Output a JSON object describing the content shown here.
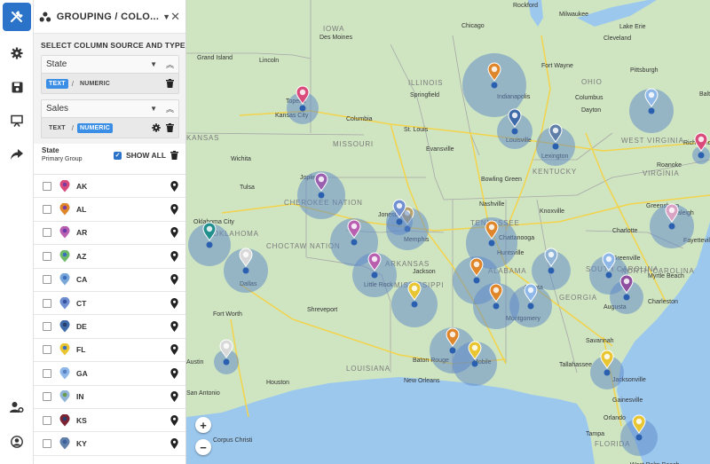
{
  "panel": {
    "title": "GROUPING / COLO...",
    "config_label": "SELECT COLUMN SOURCE AND TYPE:",
    "columns": [
      {
        "name": "State",
        "text_label": "TEXT",
        "numeric_label": "NUMERIC",
        "selected": "TEXT"
      },
      {
        "name": "Sales",
        "text_label": "TEXT",
        "numeric_label": "NUMERIC",
        "selected": "NUMERIC"
      }
    ],
    "group_title": "State",
    "group_subtitle": "Primary Group",
    "show_all_label": "SHOW ALL",
    "items": [
      {
        "label": "AK",
        "color": "#d94b7a",
        "inner": "#7d3ba0"
      },
      {
        "label": "AL",
        "color": "#e0862a",
        "inner": "#7d3ba0"
      },
      {
        "label": "AR",
        "color": "#b85fb0",
        "inner": "#6a3ba8"
      },
      {
        "label": "AZ",
        "color": "#6fb96a",
        "inner": "#3a6fbf"
      },
      {
        "label": "CA",
        "color": "#7aa7d8",
        "inner": "#3a6fbf"
      },
      {
        "label": "CT",
        "color": "#6f8fd0",
        "inner": "#33539e"
      },
      {
        "label": "DE",
        "color": "#3f6aa8",
        "inner": "#253f6e"
      },
      {
        "label": "FL",
        "color": "#e8c531",
        "inner": "#3a6fbf"
      },
      {
        "label": "GA",
        "color": "#8fb8e8",
        "inner": "#5581c2"
      },
      {
        "label": "IN",
        "color": "#8fb4d6",
        "inner": "#6a9a4c"
      },
      {
        "label": "KS",
        "color": "#7d2433",
        "inner": "#253f6e"
      },
      {
        "label": "KY",
        "color": "#5f7fa8",
        "inner": "#3a5f9e"
      }
    ]
  },
  "map": {
    "labels": [
      {
        "text": "IOWA"
      },
      {
        "text": "Des Moines"
      },
      {
        "text": "Chicago"
      },
      {
        "text": "Cleveland"
      },
      {
        "text": "Pittsburgh"
      },
      {
        "text": "OHIO"
      },
      {
        "text": "ILLINOIS"
      },
      {
        "text": "Springfield"
      },
      {
        "text": "Columbus"
      },
      {
        "text": "Indianapolis"
      },
      {
        "text": "Kansas City"
      },
      {
        "text": "Columbia"
      },
      {
        "text": "St. Louis"
      },
      {
        "text": "MISSOURI"
      },
      {
        "text": "KANSAS"
      },
      {
        "text": "Wichita"
      },
      {
        "text": "Evansville"
      },
      {
        "text": "Louisville"
      },
      {
        "text": "Lexington"
      },
      {
        "text": "KENTUCKY"
      },
      {
        "text": "WEST VIRGINIA"
      },
      {
        "text": "VIRGINIA"
      },
      {
        "text": "Bowling Green"
      },
      {
        "text": "Nashville"
      },
      {
        "text": "TENNESSEE"
      },
      {
        "text": "Knoxville"
      },
      {
        "text": "Charlotte"
      },
      {
        "text": "Greensboro"
      },
      {
        "text": "Raleigh"
      },
      {
        "text": "NORTH CAROLINA"
      },
      {
        "text": "Joplin"
      },
      {
        "text": "CHEROKEE NATION"
      },
      {
        "text": "Oklahoma City"
      },
      {
        "text": "OKLAHOMA"
      },
      {
        "text": "Jonesboro"
      },
      {
        "text": "Memphis"
      },
      {
        "text": "Chattanooga"
      },
      {
        "text": "Atlanta"
      },
      {
        "text": "ARKANSAS"
      },
      {
        "text": "CHOCTAW NATION"
      },
      {
        "text": "Fort Worth"
      },
      {
        "text": "Shreveport"
      },
      {
        "text": "MISSISSIPPI"
      },
      {
        "text": "ALABAMA"
      },
      {
        "text": "GEORGIA"
      },
      {
        "text": "SOUTH CAROLINA"
      },
      {
        "text": "Myrtle Beach"
      },
      {
        "text": "Charleston"
      },
      {
        "text": "LOUISIANA"
      },
      {
        "text": "Baton Rouge"
      },
      {
        "text": "New Orleans"
      },
      {
        "text": "Mobile"
      },
      {
        "text": "Houston"
      },
      {
        "text": "San Antonio"
      },
      {
        "text": "Jacksonville"
      },
      {
        "text": "Orlando"
      },
      {
        "text": "Tampa"
      },
      {
        "text": "FLORIDA"
      },
      {
        "text": "Corpus Christi"
      },
      {
        "text": "Lincoln"
      },
      {
        "text": "Grand Island"
      },
      {
        "text": "Topeka"
      },
      {
        "text": "Milwaukee"
      },
      {
        "text": "Lake Erie"
      },
      {
        "text": "Richmond"
      },
      {
        "text": "Fort Wayne"
      },
      {
        "text": "Dayton"
      },
      {
        "text": "Augusta"
      },
      {
        "text": "Greenville"
      },
      {
        "text": "Fayetteville"
      },
      {
        "text": "Savannah"
      },
      {
        "text": "Tallahassee"
      },
      {
        "text": "Montgomery"
      },
      {
        "text": "Jackson"
      },
      {
        "text": "Little Rock"
      },
      {
        "text": "Tulsa"
      },
      {
        "text": "Dallas"
      },
      {
        "text": "Austin"
      },
      {
        "text": "Gainesville"
      },
      {
        "text": "West Palm Beach"
      },
      {
        "text": "Baltimore"
      },
      {
        "text": "Huntsville"
      },
      {
        "text": "Roanoke"
      },
      {
        "text": "Rockford"
      }
    ],
    "zoom_in": "+",
    "zoom_out": "−"
  },
  "colors": {
    "accent": "#2b73c8",
    "land": "#cfe5c2",
    "water": "#9cc8ee",
    "cluster": "#5b86c8"
  }
}
